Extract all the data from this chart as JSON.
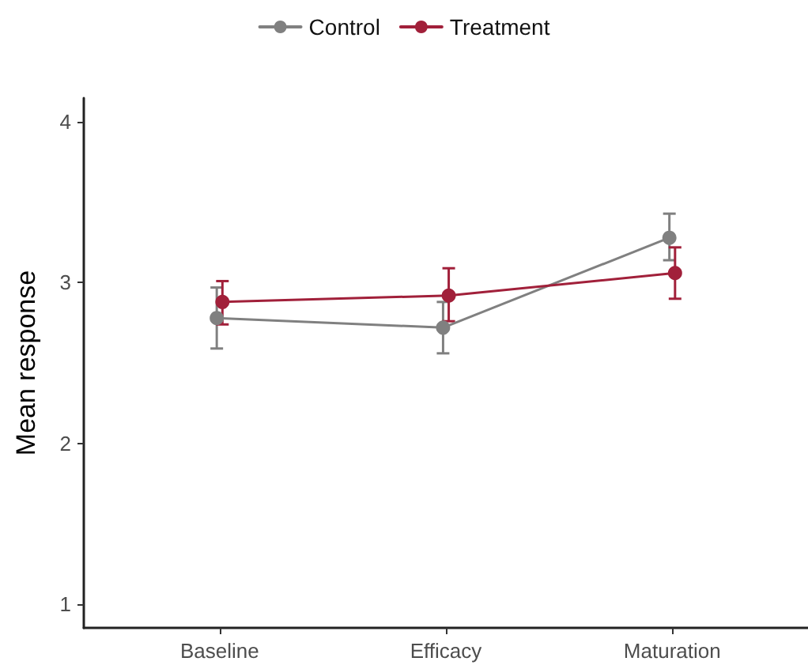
{
  "chart_data": {
    "type": "line",
    "ylabel": "Mean response",
    "categories": [
      "Baseline",
      "Efficacy",
      "Maturation"
    ],
    "series": [
      {
        "name": "Control",
        "color": "#808080",
        "values": [
          2.78,
          2.72,
          3.28
        ],
        "errors": [
          [
            2.59,
            2.97
          ],
          [
            2.56,
            2.88
          ],
          [
            3.14,
            3.43
          ]
        ]
      },
      {
        "name": "Treatment",
        "color": "#a1203a",
        "values": [
          2.88,
          2.92,
          3.06
        ],
        "errors": [
          [
            2.74,
            3.01
          ],
          [
            2.76,
            3.09
          ],
          [
            2.9,
            3.22
          ]
        ]
      }
    ],
    "ylim": [
      0.85,
      4.15
    ],
    "yticks": [
      1,
      2,
      3,
      4
    ],
    "grid": false,
    "legend": "top",
    "marker": "circle",
    "line_style": "solid"
  }
}
